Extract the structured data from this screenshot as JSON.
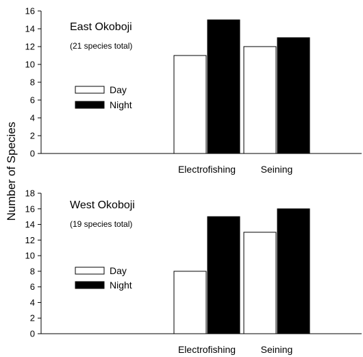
{
  "chart_data": {
    "type": "bar",
    "ylabel": "Number of Species",
    "legend_placement": "center-left",
    "panels": [
      {
        "title": "East Okoboji",
        "subtitle": "(21 species total)",
        "categories": [
          "Electrofishing",
          "Seining"
        ],
        "series": [
          {
            "name": "Day",
            "values": [
              11,
              12
            ],
            "color": "#ffffff"
          },
          {
            "name": "Night",
            "values": [
              15,
              13
            ],
            "color": "#000000"
          }
        ],
        "ylim": [
          0,
          16
        ],
        "yticks": [
          0,
          2,
          4,
          6,
          8,
          10,
          12,
          14,
          16
        ]
      },
      {
        "title": "West Okoboji",
        "subtitle": "(19 species total)",
        "categories": [
          "Electrofishing",
          "Seining"
        ],
        "series": [
          {
            "name": "Day",
            "values": [
              8,
              13
            ],
            "color": "#ffffff"
          },
          {
            "name": "Night",
            "values": [
              15,
              16
            ],
            "color": "#000000"
          }
        ],
        "ylim": [
          0,
          18
        ],
        "yticks": [
          0,
          2,
          4,
          6,
          8,
          10,
          12,
          14,
          16,
          18
        ]
      }
    ]
  }
}
